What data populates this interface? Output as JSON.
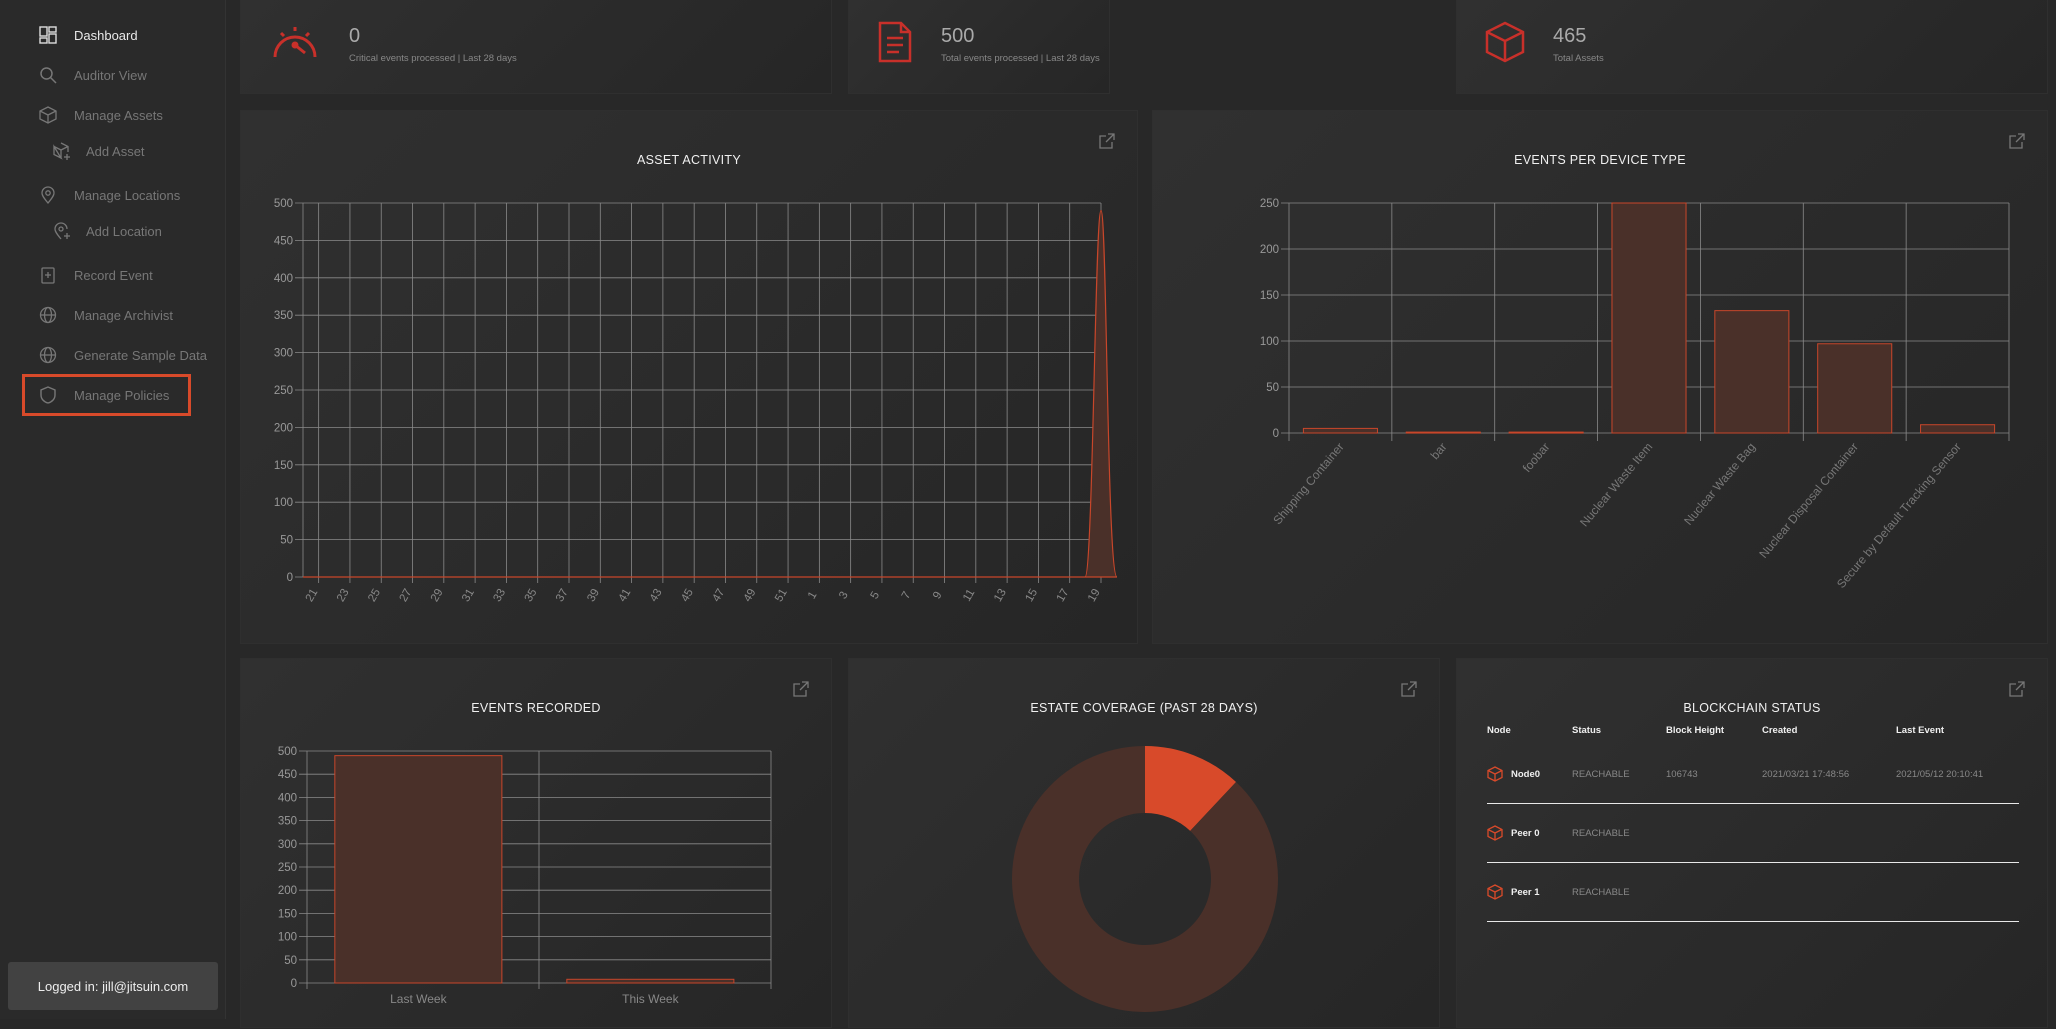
{
  "sidebar": {
    "items": [
      {
        "label": "Dashboard",
        "icon": "dashboard-icon"
      },
      {
        "label": "Auditor View",
        "icon": "search-icon"
      },
      {
        "label": "Manage Assets",
        "icon": "box-icon"
      },
      {
        "label": "Add Asset",
        "icon": "add-box-icon"
      },
      {
        "label": "Manage Locations",
        "icon": "location-icon"
      },
      {
        "label": "Add Location",
        "icon": "add-location-icon"
      },
      {
        "label": "Record Event",
        "icon": "record-icon"
      },
      {
        "label": "Manage Archivist",
        "icon": "globe-icon"
      },
      {
        "label": "Generate Sample Data",
        "icon": "globe-icon"
      },
      {
        "label": "Manage Policies",
        "icon": "shield-icon"
      }
    ],
    "login": "Logged in: jill@jitsuin.com"
  },
  "stats": [
    {
      "value": "0",
      "label": "Critical events processed | Last 28 days",
      "icon": "speedometer-icon"
    },
    {
      "value": "500",
      "label": "Total events processed | Last 28 days",
      "icon": "document-icon"
    },
    {
      "value": "465",
      "label": "Total Assets",
      "icon": "cube-icon"
    }
  ],
  "cards": {
    "asset_activity": "ASSET ACTIVITY",
    "events_per_device": "EVENTS PER DEVICE TYPE",
    "events_recorded": "EVENTS RECORDED",
    "estate_coverage": "ESTATE COVERAGE (PAST 28 DAYS)",
    "blockchain": "BLOCKCHAIN STATUS"
  },
  "colors": {
    "accent": "#d84a2a",
    "bar_fill": "#4a3029",
    "bar_stroke": "#c8462a",
    "grid": "#8a8a8a"
  },
  "chart_data": [
    {
      "type": "area",
      "title": "ASSET ACTIVITY",
      "x": [
        "21",
        "23",
        "25",
        "27",
        "29",
        "31",
        "33",
        "35",
        "37",
        "39",
        "41",
        "43",
        "45",
        "47",
        "49",
        "51",
        "1",
        "3",
        "5",
        "7",
        "9",
        "11",
        "13",
        "15",
        "17",
        "19"
      ],
      "series": [
        {
          "values": [
            0,
            0,
            0,
            0,
            0,
            0,
            0,
            0,
            0,
            0,
            0,
            0,
            0,
            0,
            0,
            0,
            0,
            0,
            0,
            0,
            0,
            0,
            0,
            0,
            0,
            490
          ]
        }
      ],
      "ylim": [
        0,
        500
      ],
      "yticks": [
        0,
        50,
        100,
        150,
        200,
        250,
        300,
        350,
        400,
        450,
        500
      ],
      "grid": true
    },
    {
      "type": "bar",
      "title": "EVENTS PER DEVICE TYPE",
      "categories": [
        "Shipping Container",
        "bar",
        "foobar",
        "Nuclear Waste Item",
        "Nuclear Waste Bag",
        "Nuclear Disposal Container",
        "Secure by Default Tracking Sensor"
      ],
      "values": [
        5,
        1,
        1,
        250,
        133,
        97,
        9
      ],
      "ylim": [
        0,
        250
      ],
      "yticks": [
        0,
        50,
        100,
        150,
        200,
        250
      ],
      "grid": true
    },
    {
      "type": "bar",
      "title": "EVENTS RECORDED",
      "categories": [
        "Last Week",
        "This Week"
      ],
      "values": [
        490,
        8
      ],
      "ylim": [
        0,
        500
      ],
      "yticks": [
        0,
        50,
        100,
        150,
        200,
        250,
        300,
        350,
        400,
        450,
        500
      ],
      "grid": true
    },
    {
      "type": "pie",
      "title": "ESTATE COVERAGE (PAST 28 DAYS)",
      "values": [
        12,
        88
      ],
      "colors": [
        "#d84a2a",
        "#4a3029"
      ]
    }
  ],
  "blockchain": {
    "headers": [
      "Node",
      "Status",
      "Block Height",
      "Created",
      "Last Event"
    ],
    "rows": [
      {
        "node": "Node0",
        "status": "REACHABLE",
        "height": "106743",
        "created": "2021/03/21 17:48:56",
        "last": "2021/05/12 20:10:41"
      },
      {
        "node": "Peer 0",
        "status": "REACHABLE",
        "height": "",
        "created": "",
        "last": ""
      },
      {
        "node": "Peer 1",
        "status": "REACHABLE",
        "height": "",
        "created": "",
        "last": ""
      }
    ]
  }
}
